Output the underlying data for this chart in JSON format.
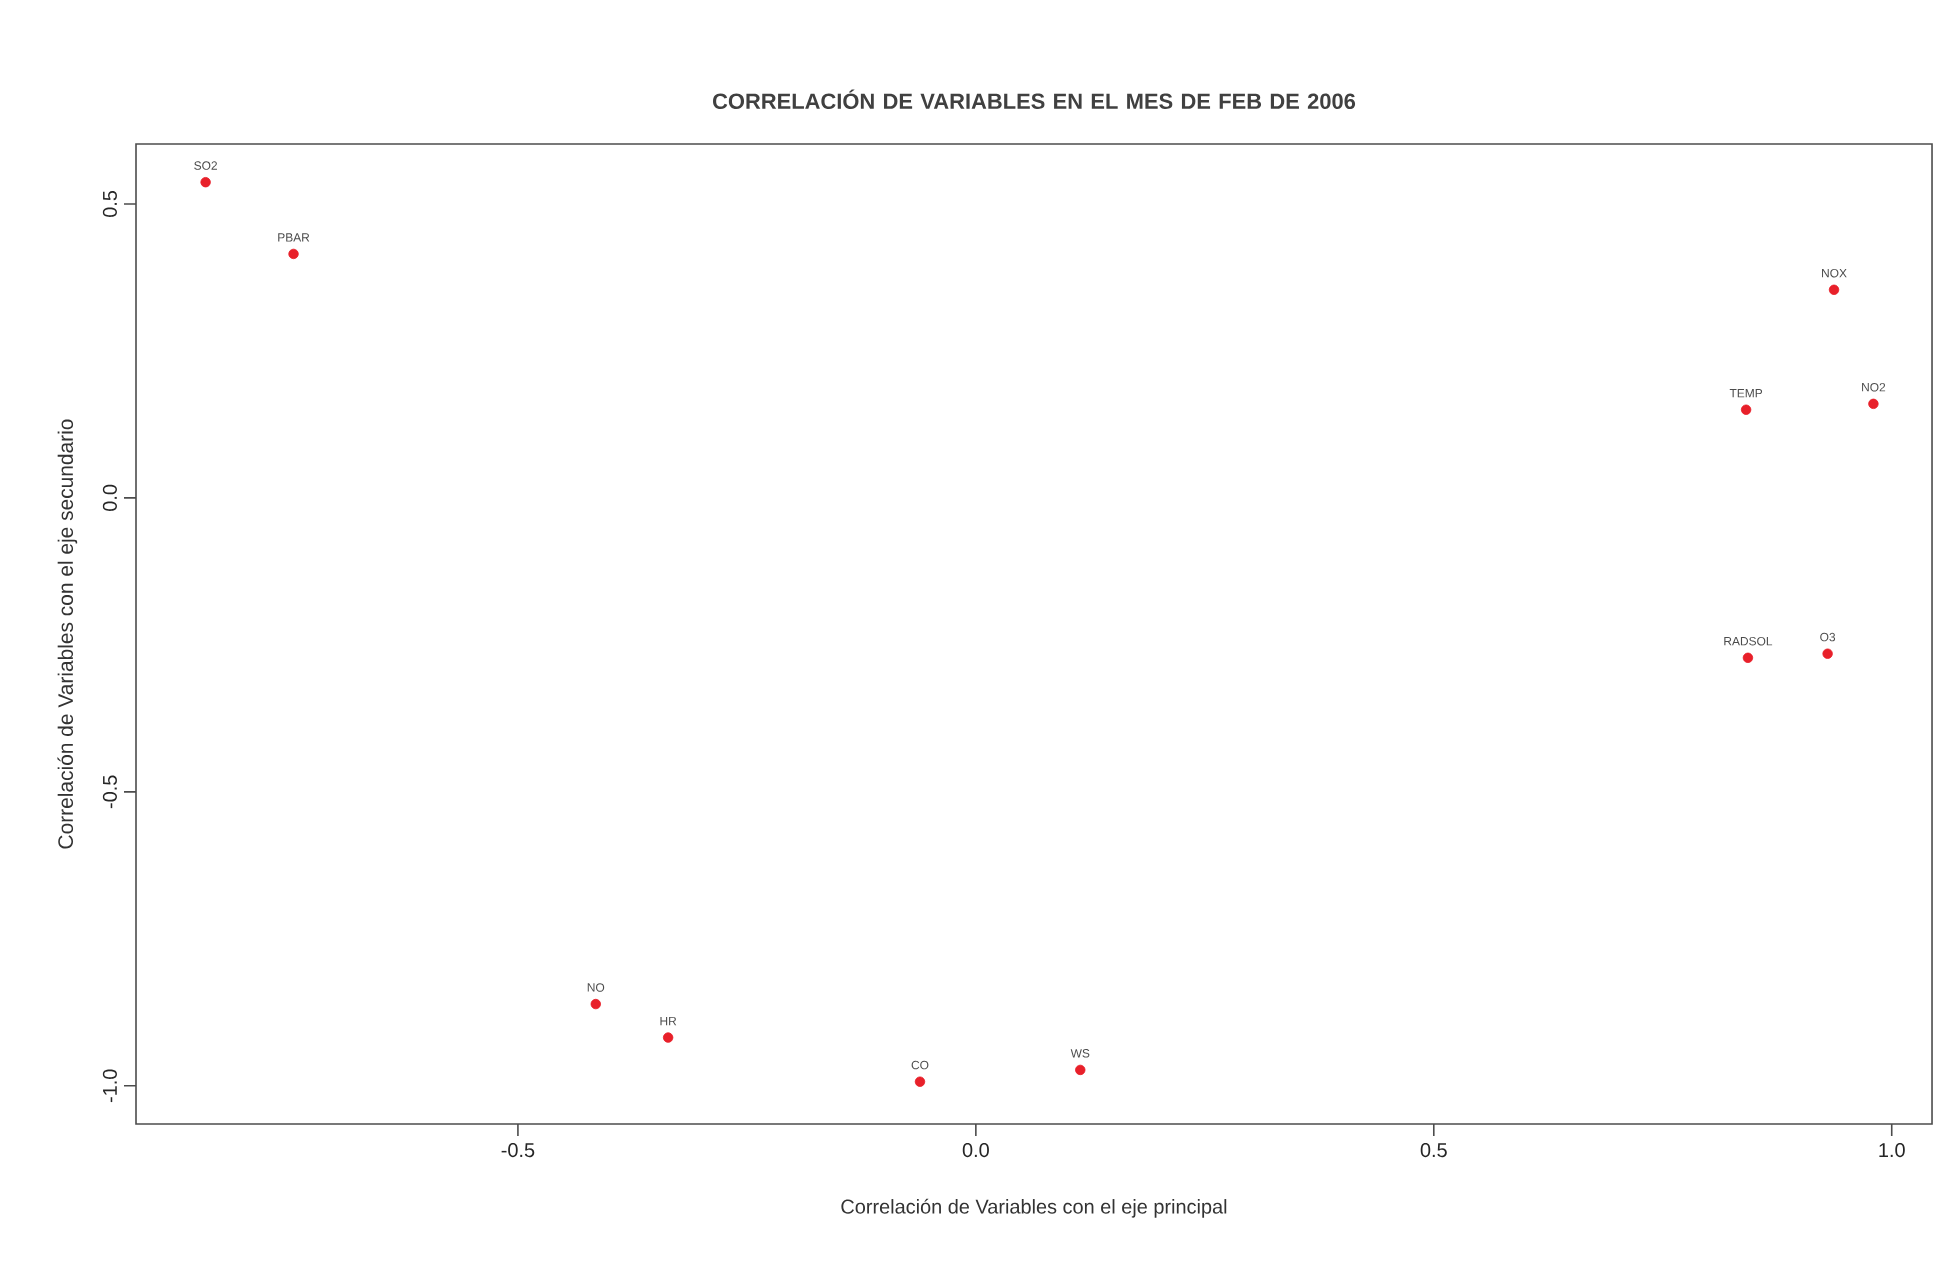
{
  "chart_data": {
    "type": "scatter",
    "title": "CORRELACIÓN DE VARIABLES EN EL MES DE FEB DE 2006",
    "xlabel": "Correlación de Variables con el eje principal",
    "ylabel": "Correlación de Variables con el eje secundario",
    "x": [
      -0.841,
      -0.745,
      0.937,
      0.841,
      0.98,
      0.843,
      0.93,
      -0.415,
      -0.336,
      -0.061,
      0.114
    ],
    "values": [
      0.537,
      0.415,
      0.354,
      0.15,
      0.16,
      -0.272,
      -0.265,
      -0.861,
      -0.918,
      -0.993,
      -0.973
    ],
    "color": "#e8202a",
    "marker": "circle",
    "grid": false,
    "xlim": [
      -0.917,
      1.044
    ],
    "ylim": [
      -1.065,
      0.602
    ],
    "xticks": [
      -0.5,
      {
        "value": 0,
        "label": "0.0"
      },
      0.5,
      {
        "value": 1,
        "label": "1.0"
      }
    ],
    "yticks": [
      {
        "value": -1,
        "label": "-1.0"
      },
      -0.5,
      {
        "value": 0,
        "label": "0.0"
      },
      0.5
    ],
    "annotations": [
      {
        "text": "SO2",
        "x": -0.841,
        "y": 0.537
      },
      {
        "text": "PBAR",
        "x": -0.745,
        "y": 0.415
      },
      {
        "text": "NOX",
        "x": 0.937,
        "y": 0.354
      },
      {
        "text": "TEMP",
        "x": 0.841,
        "y": 0.15
      },
      {
        "text": "NO2",
        "x": 0.98,
        "y": 0.16
      },
      {
        "text": "RADSOL",
        "x": 0.843,
        "y": -0.272
      },
      {
        "text": "O3",
        "x": 0.93,
        "y": -0.265
      },
      {
        "text": "NO",
        "x": -0.415,
        "y": -0.861
      },
      {
        "text": "HR",
        "x": -0.336,
        "y": -0.918
      },
      {
        "text": "CO",
        "x": -0.061,
        "y": -0.993
      },
      {
        "text": "WS",
        "x": 0.114,
        "y": -0.973
      }
    ]
  }
}
